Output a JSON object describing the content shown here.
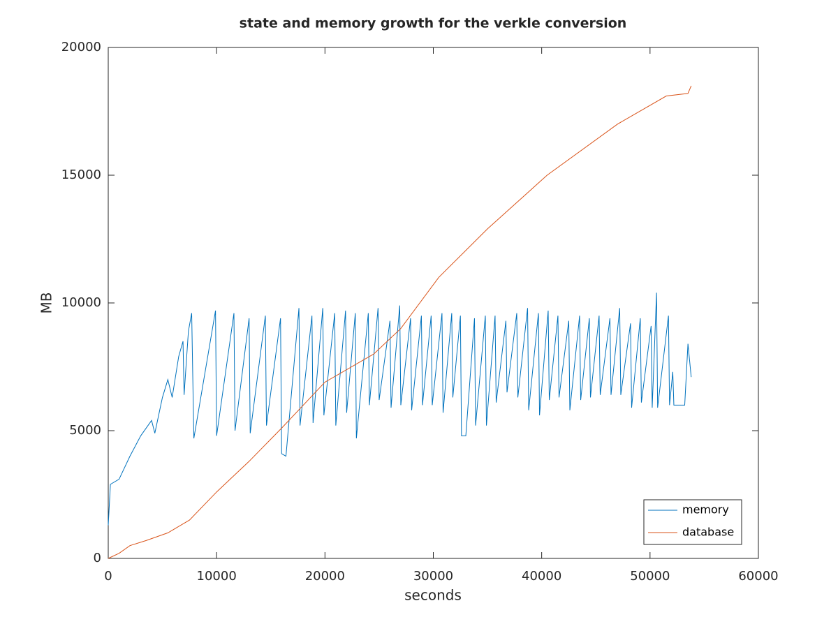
{
  "chart_data": {
    "type": "line",
    "title": "state and memory growth for the verkle conversion",
    "xlabel": "seconds",
    "ylabel": "MB",
    "xlim": [
      0,
      60000
    ],
    "xticks": [
      0,
      10000,
      20000,
      30000,
      40000,
      50000,
      60000
    ],
    "ylim": [
      0,
      20000
    ],
    "yticks": [
      0,
      5000,
      10000,
      15000,
      20000
    ],
    "grid": false,
    "legend": "lower right",
    "series": [
      {
        "name": "memory",
        "color": "#0072bd",
        "x": [
          0,
          200,
          1000,
          2000,
          3000,
          4000,
          4300,
          5000,
          5500,
          5900,
          6500,
          6900,
          7000,
          7400,
          7700,
          7900,
          9900,
          10000,
          11600,
          11700,
          13000,
          13100,
          14500,
          14600,
          15900,
          16000,
          16400,
          17600,
          17700,
          18800,
          18900,
          19800,
          19900,
          20900,
          21000,
          21900,
          22000,
          22800,
          22900,
          24000,
          24100,
          24900,
          25000,
          26000,
          26100,
          26900,
          27000,
          27900,
          28000,
          28900,
          29000,
          29800,
          29900,
          30800,
          30900,
          31700,
          31800,
          32500,
          32600,
          33000,
          33800,
          33900,
          34800,
          34900,
          35700,
          35800,
          36700,
          36800,
          37700,
          37800,
          38700,
          38800,
          39700,
          39800,
          40600,
          40700,
          41500,
          41600,
          42500,
          42600,
          43500,
          43600,
          44400,
          44500,
          45300,
          45400,
          46300,
          46400,
          47200,
          47300,
          48200,
          48300,
          49100,
          49200,
          50100,
          50200,
          50600,
          50700,
          51700,
          51800,
          52100,
          52200,
          53200,
          53500,
          53800
        ],
        "values": [
          1300,
          2900,
          3100,
          4000,
          4800,
          5400,
          4900,
          6300,
          7000,
          6300,
          7900,
          8500,
          6400,
          8900,
          9600,
          4700,
          9700,
          4800,
          9600,
          5000,
          9400,
          4900,
          9500,
          5200,
          9400,
          4100,
          4000,
          9800,
          5200,
          9500,
          5300,
          9800,
          5600,
          9600,
          5200,
          9700,
          5700,
          9600,
          4700,
          9600,
          6000,
          9800,
          6200,
          9300,
          5900,
          9900,
          6000,
          9400,
          5800,
          9500,
          6000,
          9500,
          6000,
          9600,
          5700,
          9600,
          6300,
          9500,
          4800,
          4800,
          9400,
          5200,
          9500,
          5200,
          9500,
          6100,
          9300,
          6500,
          9600,
          6300,
          9800,
          5800,
          9600,
          5600,
          9700,
          6200,
          9500,
          6300,
          9300,
          5800,
          9500,
          6200,
          9400,
          6300,
          9500,
          6400,
          9400,
          6400,
          9800,
          6400,
          9200,
          5900,
          9400,
          6100,
          9100,
          5900,
          10400,
          5900,
          9500,
          6000,
          7300,
          6000,
          6000,
          8400,
          7100
        ]
      },
      {
        "name": "database",
        "color": "#d95319",
        "x": [
          0,
          1000,
          2000,
          3500,
          5500,
          7500,
          10000,
          13000,
          16000,
          20000,
          24500,
          27000,
          30500,
          35000,
          40500,
          47000,
          51500,
          53500,
          53800
        ],
        "values": [
          0,
          200,
          500,
          700,
          1000,
          1500,
          2600,
          3800,
          5100,
          6900,
          8000,
          9000,
          11000,
          12900,
          15000,
          17000,
          18100,
          18200,
          18500
        ]
      }
    ]
  }
}
